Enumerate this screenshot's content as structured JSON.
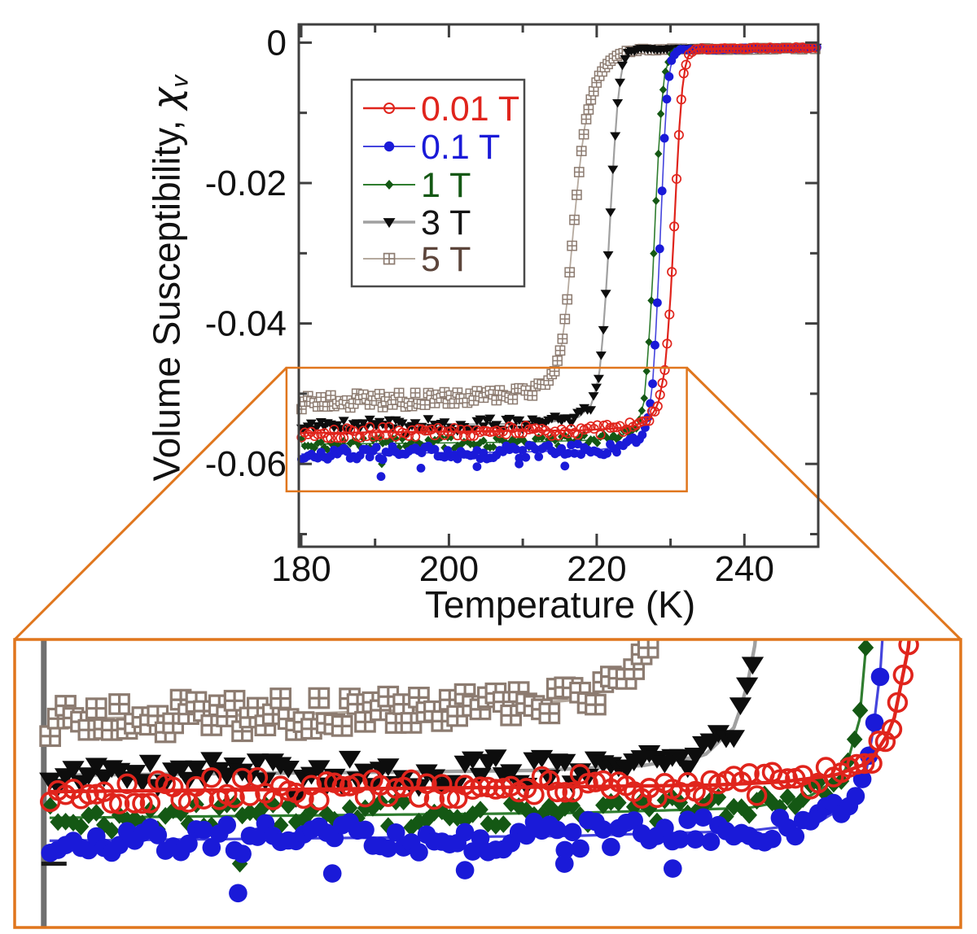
{
  "figure": {
    "background": "#ffffff"
  },
  "chart_data": {
    "type": "scatter",
    "title": "",
    "xlabel": "Temperature (K)",
    "ylabel_prefix": "Volume Susceptibility, ",
    "ylabel_symbol": "χ",
    "ylabel_subscript": "v",
    "xlim": [
      179.67,
      250
    ],
    "ylim": [
      -0.0718,
      0.0026
    ],
    "grid": false,
    "axis_color": "#3f3f3f",
    "text_color": "#111111",
    "xticks": {
      "major": [
        180,
        200,
        220,
        240
      ],
      "labels": [
        "180",
        "200",
        "220",
        "240"
      ],
      "minor": [
        190,
        210,
        230,
        250
      ]
    },
    "yticks": {
      "major": [
        0,
        -0.02,
        -0.04,
        -0.06
      ],
      "labels": [
        "0",
        "-0.02",
        "-0.04",
        "-0.06"
      ],
      "minor": [
        -0.01,
        -0.03,
        -0.05,
        -0.07
      ]
    },
    "legend": {
      "position": "upper-left-inside",
      "border_color": "#4a4a4a"
    },
    "series": [
      {
        "name": "0.01T",
        "label": "0.01 T",
        "marker": "open-circle",
        "color": "#e0241c",
        "line_color": "#e0241c",
        "text_color": "#e0241c",
        "plateau": -0.0556,
        "noise": 0.00085,
        "dip": 0.02,
        "transition_K": 230.5,
        "anchors": [
          [
            180,
            -0.0556
          ],
          [
            190,
            -0.0555
          ],
          [
            200,
            -0.0554
          ],
          [
            210,
            -0.0553
          ],
          [
            218,
            -0.0552
          ],
          [
            222,
            -0.055
          ],
          [
            225,
            -0.0546
          ],
          [
            227,
            -0.0538
          ],
          [
            228.3,
            -0.0516
          ],
          [
            229.2,
            -0.0468
          ],
          [
            229.8,
            -0.0398
          ],
          [
            230.3,
            -0.0305
          ],
          [
            230.8,
            -0.0198
          ],
          [
            231.3,
            -0.01
          ],
          [
            231.8,
            -0.0042
          ],
          [
            232.5,
            -0.0016
          ],
          [
            233.5,
            -0.0009
          ],
          [
            250,
            -0.0007
          ]
        ]
      },
      {
        "name": "0.1T",
        "label": "0.1 T",
        "marker": "filled-circle",
        "color": "#1a1ad8",
        "line_color": "#4444dd",
        "text_color": "#1a1ad8",
        "plateau": -0.0586,
        "noise": 0.001,
        "dip": 0.055,
        "transition_K": 228.3,
        "anchors": [
          [
            180,
            -0.0586
          ],
          [
            190,
            -0.0585
          ],
          [
            200,
            -0.0584
          ],
          [
            210,
            -0.0583
          ],
          [
            220,
            -0.058
          ],
          [
            224,
            -0.0575
          ],
          [
            226,
            -0.0562
          ],
          [
            226.8,
            -0.0543
          ],
          [
            227.5,
            -0.0498
          ],
          [
            228.1,
            -0.0398
          ],
          [
            228.6,
            -0.028
          ],
          [
            229.1,
            -0.015
          ],
          [
            229.6,
            -0.0062
          ],
          [
            230.2,
            -0.0022
          ],
          [
            231.2,
            -0.001
          ],
          [
            250,
            -0.0007
          ]
        ],
        "outliers": [
          [
            190.8,
            -0.0618
          ],
          [
            196.2,
            -0.0606
          ],
          [
            203.8,
            -0.0604
          ],
          [
            209.5,
            -0.06
          ],
          [
            215.7,
            -0.0603
          ]
        ]
      },
      {
        "name": "1T",
        "label": "1 T",
        "marker": "filled-diamond",
        "color": "#145814",
        "line_color": "#2f7d2f",
        "text_color": "#145814",
        "plateau": -0.0572,
        "noise": 0.00085,
        "dip": 0.035,
        "transition_K": 227.4,
        "anchors": [
          [
            180,
            -0.0572
          ],
          [
            190,
            -0.0571
          ],
          [
            200,
            -0.057
          ],
          [
            210,
            -0.0569
          ],
          [
            220,
            -0.0566
          ],
          [
            223.5,
            -0.0559
          ],
          [
            225.5,
            -0.0546
          ],
          [
            226.4,
            -0.0512
          ],
          [
            227,
            -0.044
          ],
          [
            227.6,
            -0.033
          ],
          [
            228.1,
            -0.021
          ],
          [
            228.6,
            -0.011
          ],
          [
            229.2,
            -0.0046
          ],
          [
            230,
            -0.0016
          ],
          [
            231,
            -0.0009
          ],
          [
            250,
            -0.0007
          ]
        ],
        "outliers": [
          [
            190.9,
            -0.06
          ]
        ]
      },
      {
        "name": "3T",
        "label": "3 T",
        "marker": "filled-triangle-down",
        "color": "#0d0d0d",
        "line_color": "#a0a0a0",
        "text_color": "#141414",
        "plateau": -0.0546,
        "noise": 0.00095,
        "dip": 0.03,
        "transition_K": 221.4,
        "anchors": [
          [
            180,
            -0.0546
          ],
          [
            190,
            -0.0545
          ],
          [
            200,
            -0.0544
          ],
          [
            208,
            -0.0543
          ],
          [
            214,
            -0.054
          ],
          [
            217.5,
            -0.0534
          ],
          [
            219.3,
            -0.0516
          ],
          [
            220.3,
            -0.0478
          ],
          [
            221,
            -0.04
          ],
          [
            221.6,
            -0.0295
          ],
          [
            222.2,
            -0.018
          ],
          [
            222.8,
            -0.009
          ],
          [
            223.4,
            -0.0035
          ],
          [
            224.2,
            -0.0014
          ],
          [
            225.5,
            -0.0009
          ],
          [
            250,
            -0.0007
          ]
        ]
      },
      {
        "name": "5T",
        "label": "5 T",
        "marker": "open-square-cross",
        "color": "#8c7b70",
        "line_color": "#b5a99e",
        "text_color": "#5c453b",
        "plateau": -0.0512,
        "noise": 0.0011,
        "dip": 0.03,
        "transition_K": 216.5,
        "anchors": [
          [
            180,
            -0.0512
          ],
          [
            188,
            -0.051
          ],
          [
            196,
            -0.0508
          ],
          [
            204,
            -0.0505
          ],
          [
            210,
            -0.05
          ],
          [
            212.5,
            -0.0492
          ],
          [
            214.2,
            -0.0472
          ],
          [
            215.3,
            -0.043
          ],
          [
            216,
            -0.0368
          ],
          [
            216.6,
            -0.0295
          ],
          [
            217.2,
            -0.0228
          ],
          [
            217.8,
            -0.0165
          ],
          [
            218.5,
            -0.0112
          ],
          [
            219.4,
            -0.0072
          ],
          [
            220.5,
            -0.0044
          ],
          [
            221.8,
            -0.0026
          ],
          [
            223.5,
            -0.0014
          ],
          [
            226,
            -0.001
          ],
          [
            250,
            -0.0008
          ]
        ]
      }
    ],
    "zoom_region": {
      "t0": 178.0,
      "t1": 232.2,
      "chi0": -0.0639,
      "chi1": -0.0463,
      "color": "#e0761d"
    },
    "inset": {
      "xlim": [
        178.0,
        232.2
      ],
      "ylim": [
        -0.0639,
        -0.0463
      ],
      "axis_line_T": 179.67,
      "axis_tick_chi": -0.06,
      "marker_scale": 2.1,
      "border_color": "#e0761d",
      "axis_line_color": "#707070",
      "tick_color": "#1a1a1a"
    }
  }
}
